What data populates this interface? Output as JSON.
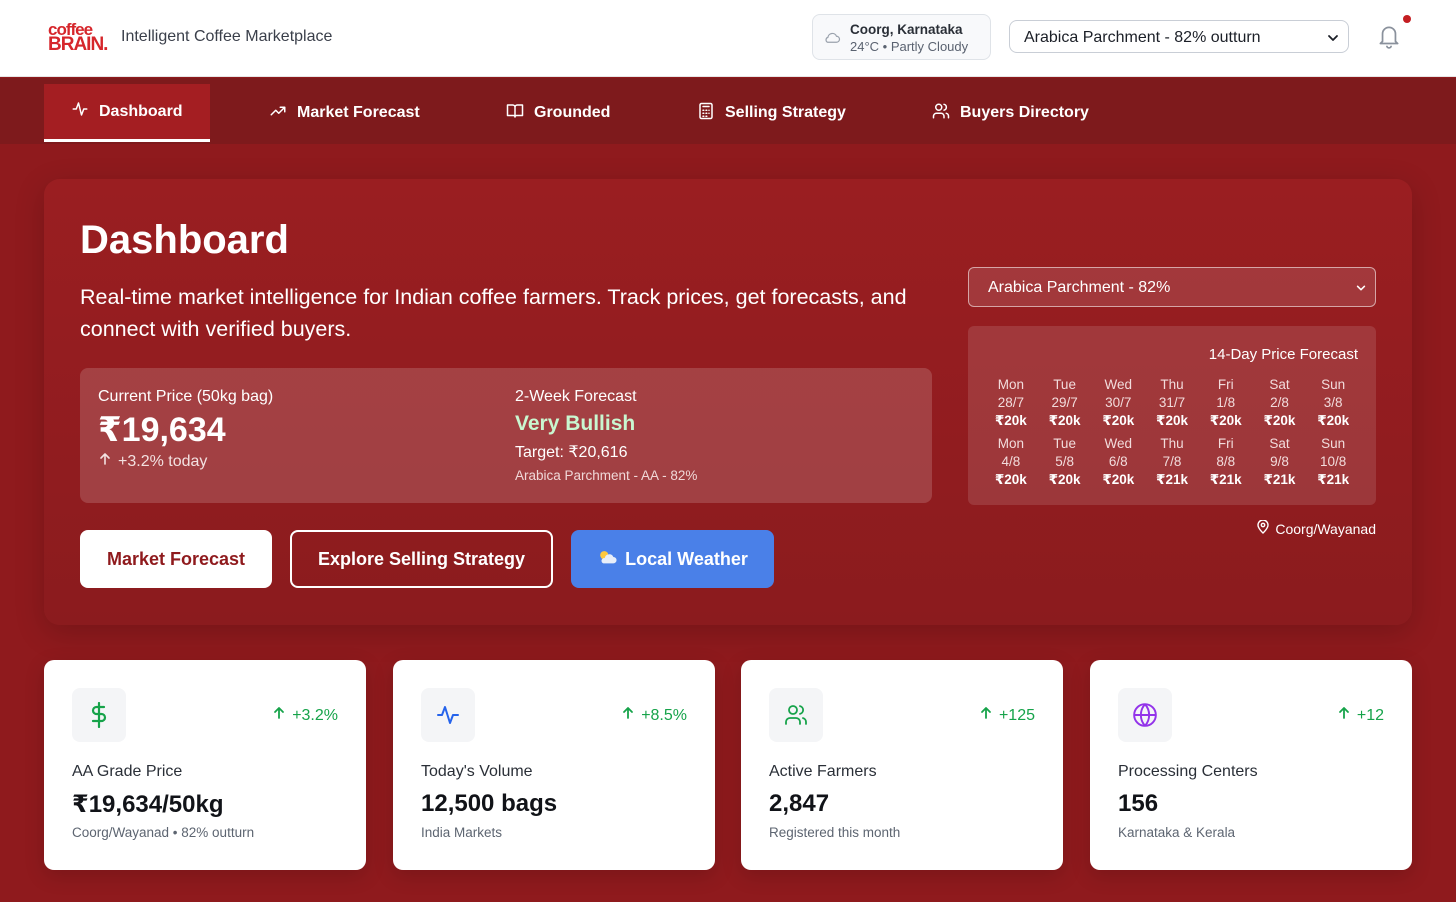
{
  "header": {
    "logo_line1": "coffee",
    "logo_line2": "BRAIN.",
    "subtitle": "Intelligent Coffee Marketplace",
    "weather": {
      "location": "Coorg, Karnataka",
      "condition": "24°C • Partly Cloudy",
      "icon": "cloud-icon"
    },
    "product_select": "Arabica Parchment - 82% outturn",
    "notification_icon": "bell-icon",
    "brand_color": "#d6262b"
  },
  "nav": {
    "items": [
      {
        "label": "Dashboard",
        "icon": "activity-icon",
        "active": true
      },
      {
        "label": "Market Forecast",
        "icon": "trending-up-icon"
      },
      {
        "label": "Grounded",
        "icon": "book-open-icon"
      },
      {
        "label": "Selling Strategy",
        "icon": "calculator-icon"
      },
      {
        "label": "Buyers Directory",
        "icon": "users-icon"
      }
    ]
  },
  "hero": {
    "title": "Dashboard",
    "description": "Real-time market intelligence for Indian coffee farmers. Track prices, get forecasts, and connect with verified buyers.",
    "price_label": "Current Price (50kg bag)",
    "price_value": "₹19,634",
    "price_change": "+3.2% today",
    "forecast_label": "2-Week Forecast",
    "forecast_value": "Very Bullish",
    "forecast_target": "Target: ₹20,616",
    "forecast_grade": "Arabica Parchment - AA - 82%",
    "buttons": {
      "market_forecast": "Market Forecast",
      "selling_strategy": "Explore Selling Strategy",
      "local_weather": "Local Weather"
    },
    "select": "Arabica Parchment - 82%",
    "forecast_panel": {
      "title": "14-Day Price Forecast",
      "week1": [
        {
          "day": "Mon",
          "date": "28/7",
          "price": "₹20k"
        },
        {
          "day": "Tue",
          "date": "29/7",
          "price": "₹20k"
        },
        {
          "day": "Wed",
          "date": "30/7",
          "price": "₹20k"
        },
        {
          "day": "Thu",
          "date": "31/7",
          "price": "₹20k"
        },
        {
          "day": "Fri",
          "date": "1/8",
          "price": "₹20k"
        },
        {
          "day": "Sat",
          "date": "2/8",
          "price": "₹20k"
        },
        {
          "day": "Sun",
          "date": "3/8",
          "price": "₹20k"
        }
      ],
      "week2": [
        {
          "day": "Mon",
          "date": "4/8",
          "price": "₹20k"
        },
        {
          "day": "Tue",
          "date": "5/8",
          "price": "₹20k"
        },
        {
          "day": "Wed",
          "date": "6/8",
          "price": "₹20k"
        },
        {
          "day": "Thu",
          "date": "7/8",
          "price": "₹21k"
        },
        {
          "day": "Fri",
          "date": "8/8",
          "price": "₹21k"
        },
        {
          "day": "Sat",
          "date": "9/8",
          "price": "₹21k"
        },
        {
          "day": "Sun",
          "date": "10/8",
          "price": "₹21k"
        }
      ],
      "location": "Coorg/Wayanad"
    }
  },
  "stats": [
    {
      "icon": "dollar-icon",
      "delta": "+3.2%",
      "label": "AA Grade Price",
      "value": "₹19,634/50kg",
      "sub": "Coorg/Wayanad • 82% outturn",
      "icon_color": "#16a34a"
    },
    {
      "icon": "activity-icon",
      "delta": "+8.5%",
      "label": "Today's Volume",
      "value": "12,500 bags",
      "sub": "India Markets",
      "icon_color": "#2563eb"
    },
    {
      "icon": "users-icon",
      "delta": "+125",
      "label": "Active Farmers",
      "value": "2,847",
      "sub": "Registered this month",
      "icon_color": "#16a34a"
    },
    {
      "icon": "globe-icon",
      "delta": "+12",
      "label": "Processing Centers",
      "value": "156",
      "sub": "Karnataka & Kerala",
      "icon_color": "#9333ea"
    }
  ]
}
